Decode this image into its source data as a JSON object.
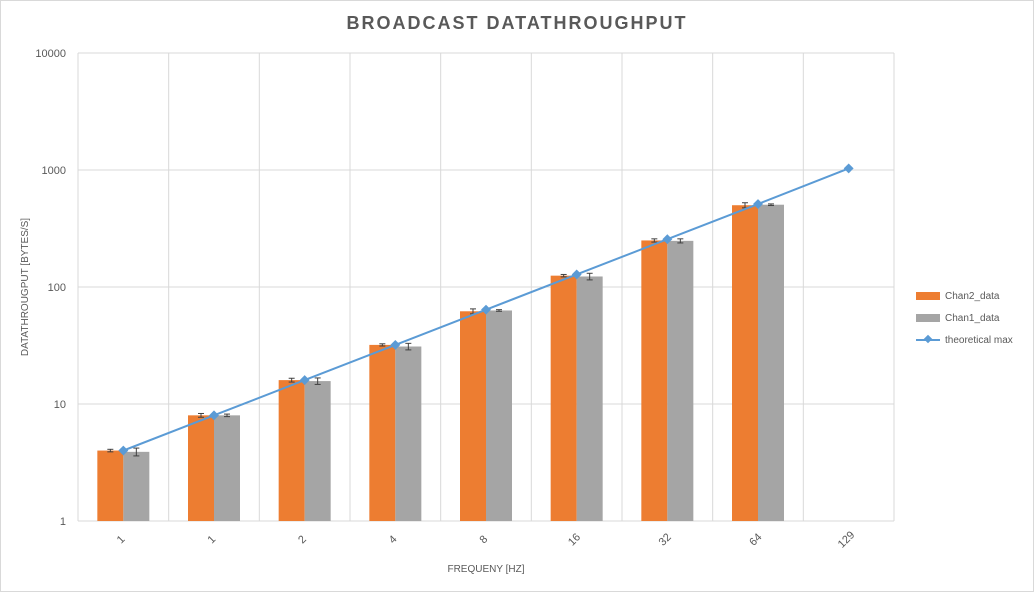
{
  "chart_data": {
    "type": "bar",
    "title": "BROADCAST DATATHROUGHPUT",
    "xlabel": "FREQUENY [HZ]",
    "ylabel": "DATATHROUGPUT [BYTES/S]",
    "yscale": "log",
    "ylim": [
      1,
      10000
    ],
    "yticks": [
      "1",
      "10",
      "100",
      "1000",
      "10000"
    ],
    "categories": [
      "1",
      "1",
      "2",
      "4",
      "8",
      "16",
      "32",
      "64",
      "129"
    ],
    "grid": true,
    "legend_position": "right",
    "series": [
      {
        "name": "Chan2_data",
        "kind": "bar",
        "color": "#ed7d31",
        "values": [
          4,
          8,
          16,
          32,
          62,
          125,
          250,
          500,
          null
        ],
        "errors": [
          0.1,
          0.3,
          0.6,
          0.7,
          3,
          3,
          8,
          25,
          null
        ]
      },
      {
        "name": "Chan1_data",
        "kind": "bar",
        "color": "#a5a5a5",
        "values": [
          3.9,
          8,
          15.7,
          31,
          63,
          123,
          248,
          505,
          null
        ],
        "errors": [
          0.3,
          0.2,
          1,
          2,
          1,
          8,
          10,
          8,
          null
        ]
      },
      {
        "name": "theoretical max",
        "kind": "line",
        "color": "#5b9bd5",
        "values": [
          4,
          8,
          16,
          32,
          64,
          128,
          256,
          512,
          1032
        ]
      }
    ]
  }
}
